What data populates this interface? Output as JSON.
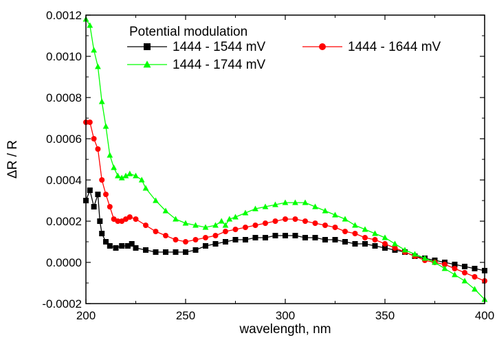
{
  "chart_data": {
    "type": "line",
    "title": "",
    "xlabel": "wavelength, nm",
    "ylabel": "ΔR / R",
    "xlim": [
      200,
      400
    ],
    "ylim": [
      -0.0002,
      0.0012
    ],
    "x_ticks": [
      "200",
      "250",
      "300",
      "350",
      "400"
    ],
    "y_ticks": [
      "-0.0002",
      "0.0000",
      "0.0002",
      "0.0004",
      "0.0006",
      "0.0008",
      "0.0010",
      "0.0012"
    ],
    "grid": false,
    "legend": {
      "title": "Potential modulation",
      "placement": "top"
    },
    "series": [
      {
        "name": "1444 - 1544 mV",
        "color": "#000000",
        "marker": "square",
        "points": [
          [
            200,
            0.0003
          ],
          [
            202,
            0.00035
          ],
          [
            204,
            0.00027
          ],
          [
            206,
            0.00033
          ],
          [
            207,
            0.0002
          ],
          [
            208,
            0.00014
          ],
          [
            210,
            0.0001
          ],
          [
            212,
            8e-05
          ],
          [
            215,
            7e-05
          ],
          [
            218,
            8e-05
          ],
          [
            221,
            8e-05
          ],
          [
            223,
            9e-05
          ],
          [
            225,
            7e-05
          ],
          [
            230,
            6e-05
          ],
          [
            235,
            5e-05
          ],
          [
            240,
            5e-05
          ],
          [
            245,
            5e-05
          ],
          [
            250,
            5e-05
          ],
          [
            255,
            6e-05
          ],
          [
            260,
            8e-05
          ],
          [
            265,
            9e-05
          ],
          [
            270,
            0.0001
          ],
          [
            275,
            0.00011
          ],
          [
            280,
            0.00011
          ],
          [
            285,
            0.00012
          ],
          [
            290,
            0.00012
          ],
          [
            295,
            0.00013
          ],
          [
            300,
            0.00013
          ],
          [
            305,
            0.00013
          ],
          [
            310,
            0.00012
          ],
          [
            315,
            0.00012
          ],
          [
            320,
            0.00011
          ],
          [
            325,
            0.00011
          ],
          [
            330,
            0.0001
          ],
          [
            335,
            9e-05
          ],
          [
            340,
            9e-05
          ],
          [
            345,
            8e-05
          ],
          [
            350,
            7e-05
          ],
          [
            355,
            6e-05
          ],
          [
            360,
            5e-05
          ],
          [
            365,
            3e-05
          ],
          [
            370,
            2e-05
          ],
          [
            375,
            1e-05
          ],
          [
            380,
            0.0
          ],
          [
            385,
            -1e-05
          ],
          [
            390,
            -2e-05
          ],
          [
            395,
            -3e-05
          ],
          [
            400,
            -4e-05
          ]
        ]
      },
      {
        "name": "1444 - 1644 mV",
        "color": "#ff0000",
        "marker": "circle",
        "points": [
          [
            200,
            0.00068
          ],
          [
            202,
            0.00068
          ],
          [
            204,
            0.0006
          ],
          [
            206,
            0.00055
          ],
          [
            208,
            0.0004
          ],
          [
            210,
            0.00033
          ],
          [
            212,
            0.00027
          ],
          [
            214,
            0.00021
          ],
          [
            216,
            0.0002
          ],
          [
            218,
            0.0002
          ],
          [
            220,
            0.00021
          ],
          [
            222,
            0.00022
          ],
          [
            225,
            0.00021
          ],
          [
            230,
            0.00018
          ],
          [
            235,
            0.00015
          ],
          [
            240,
            0.00013
          ],
          [
            245,
            0.00011
          ],
          [
            250,
            0.0001
          ],
          [
            255,
            0.00011
          ],
          [
            260,
            0.00012
          ],
          [
            265,
            0.00013
          ],
          [
            270,
            0.00015
          ],
          [
            275,
            0.00016
          ],
          [
            280,
            0.00017
          ],
          [
            285,
            0.00018
          ],
          [
            290,
            0.00019
          ],
          [
            295,
            0.0002
          ],
          [
            300,
            0.00021
          ],
          [
            305,
            0.00021
          ],
          [
            310,
            0.0002
          ],
          [
            315,
            0.00019
          ],
          [
            320,
            0.00018
          ],
          [
            325,
            0.00017
          ],
          [
            330,
            0.00015
          ],
          [
            335,
            0.00014
          ],
          [
            340,
            0.00012
          ],
          [
            345,
            0.00011
          ],
          [
            350,
            9e-05
          ],
          [
            355,
            7e-05
          ],
          [
            360,
            5e-05
          ],
          [
            365,
            3e-05
          ],
          [
            370,
            1e-05
          ],
          [
            375,
            0.0
          ],
          [
            380,
            -1e-05
          ],
          [
            385,
            -3e-05
          ],
          [
            390,
            -5e-05
          ],
          [
            395,
            -7e-05
          ],
          [
            400,
            -9e-05
          ]
        ]
      },
      {
        "name": "1444 - 1744 mV",
        "color": "#00ff00",
        "marker": "triangle",
        "points": [
          [
            200,
            0.00118
          ],
          [
            202,
            0.00115
          ],
          [
            204,
            0.00103
          ],
          [
            206,
            0.00095
          ],
          [
            208,
            0.00078
          ],
          [
            210,
            0.00066
          ],
          [
            212,
            0.00052
          ],
          [
            214,
            0.00046
          ],
          [
            216,
            0.00042
          ],
          [
            218,
            0.00041
          ],
          [
            220,
            0.00042
          ],
          [
            222,
            0.00043
          ],
          [
            225,
            0.00042
          ],
          [
            228,
            0.0004
          ],
          [
            230,
            0.00036
          ],
          [
            235,
            0.0003
          ],
          [
            240,
            0.00025
          ],
          [
            245,
            0.00021
          ],
          [
            250,
            0.00019
          ],
          [
            255,
            0.00018
          ],
          [
            260,
            0.00017
          ],
          [
            265,
            0.00018
          ],
          [
            268,
            0.0002
          ],
          [
            270,
            0.00018
          ],
          [
            272,
            0.00021
          ],
          [
            275,
            0.00022
          ],
          [
            280,
            0.00024
          ],
          [
            285,
            0.00026
          ],
          [
            290,
            0.00027
          ],
          [
            295,
            0.00028
          ],
          [
            300,
            0.00029
          ],
          [
            305,
            0.00029
          ],
          [
            310,
            0.00029
          ],
          [
            315,
            0.00027
          ],
          [
            320,
            0.00025
          ],
          [
            325,
            0.00023
          ],
          [
            330,
            0.00021
          ],
          [
            335,
            0.00018
          ],
          [
            340,
            0.00016
          ],
          [
            345,
            0.00014
          ],
          [
            350,
            0.00012
          ],
          [
            355,
            9e-05
          ],
          [
            360,
            6e-05
          ],
          [
            365,
            4e-05
          ],
          [
            370,
            2e-05
          ],
          [
            375,
            0.0
          ],
          [
            380,
            -3e-05
          ],
          [
            385,
            -6e-05
          ],
          [
            390,
            -9e-05
          ],
          [
            395,
            -0.00013
          ],
          [
            400,
            -0.00018
          ]
        ]
      }
    ]
  }
}
